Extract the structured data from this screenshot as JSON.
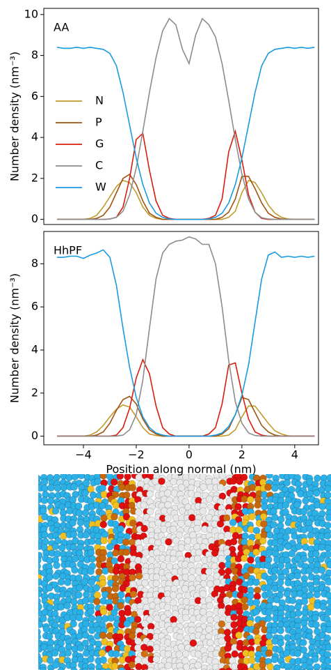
{
  "chart_data": [
    {
      "type": "line",
      "title": "AA",
      "ylabel": "Number density (nm⁻³)",
      "xlim": [
        -5.5,
        4.9
      ],
      "ylim": [
        -0.25,
        10.3
      ],
      "yticks": [
        0,
        2,
        4,
        6,
        8,
        10
      ],
      "legend": "upper left",
      "x": [
        -5,
        -4.75,
        -4.5,
        -4.25,
        -4,
        -3.75,
        -3.5,
        -3.25,
        -3,
        -2.75,
        -2.5,
        -2.25,
        -2,
        -1.75,
        -1.5,
        -1.25,
        -1,
        -0.75,
        -0.5,
        -0.25,
        0,
        0.25,
        0.5,
        0.75,
        1,
        1.25,
        1.5,
        1.75,
        2,
        2.25,
        2.5,
        2.75,
        3,
        3.25,
        3.5,
        3.75,
        4,
        4.25,
        4.5,
        4.75
      ],
      "series": [
        {
          "name": "N",
          "color": "#bf9a2c",
          "values": [
            0,
            0,
            0,
            0,
            0,
            0.05,
            0.2,
            0.6,
            1.1,
            1.6,
            1.9,
            1.8,
            1.3,
            0.6,
            0.2,
            0.05,
            0,
            0,
            0,
            0,
            0,
            0,
            0,
            0,
            0,
            0,
            0.1,
            0.4,
            1.3,
            1.9,
            1.8,
            1.3,
            0.7,
            0.3,
            0.1,
            0.02,
            0,
            0,
            0,
            0
          ]
        },
        {
          "name": "P",
          "color": "#a0520d",
          "values": [
            0,
            0,
            0,
            0,
            0,
            0,
            0.05,
            0.2,
            0.6,
            1.3,
            2.0,
            2.2,
            1.7,
            0.9,
            0.3,
            0.1,
            0,
            0,
            0,
            0,
            0,
            0,
            0,
            0,
            0,
            0.1,
            0.35,
            1.0,
            2.1,
            2.1,
            1.5,
            0.8,
            0.3,
            0.1,
            0.02,
            0,
            0,
            0,
            0,
            0
          ]
        },
        {
          "name": "G",
          "color": "#d91c0c",
          "values": [
            0,
            0,
            0,
            0,
            0,
            0,
            0,
            0,
            0.02,
            0.1,
            0.6,
            2.0,
            3.9,
            4.2,
            2.4,
            0.9,
            0.2,
            0.05,
            0,
            0,
            0,
            0,
            0,
            0.05,
            0.2,
            1.0,
            3.3,
            4.3,
            2.9,
            1.2,
            0.35,
            0.05,
            0,
            0,
            0,
            0,
            0,
            0,
            0,
            0
          ]
        },
        {
          "name": "C",
          "color": "#8c8c8c",
          "values": [
            0,
            0,
            0,
            0,
            0,
            0,
            0,
            0,
            0.02,
            0.1,
            0.4,
            1.2,
            2.5,
            4.3,
            6.2,
            7.9,
            9.2,
            9.8,
            9.5,
            8.3,
            7.6,
            9.0,
            9.8,
            9.5,
            8.9,
            7.6,
            5.8,
            3.9,
            2.2,
            1.0,
            0.35,
            0.08,
            0.02,
            0,
            0,
            0,
            0,
            0,
            0,
            0
          ]
        },
        {
          "name": "W",
          "color": "#1a9ae0",
          "values": [
            8.4,
            8.35,
            8.35,
            8.4,
            8.35,
            8.4,
            8.35,
            8.3,
            8.1,
            7.5,
            6.2,
            4.6,
            3.0,
            1.7,
            0.8,
            0.3,
            0.1,
            0.02,
            0,
            0,
            0,
            0,
            0,
            0.02,
            0.1,
            0.3,
            0.8,
            1.7,
            3.0,
            4.6,
            6.2,
            7.5,
            8.1,
            8.3,
            8.35,
            8.4,
            8.35,
            8.4,
            8.35,
            8.4
          ]
        }
      ]
    },
    {
      "type": "line",
      "title": "HhPF",
      "ylabel": "Number density (nm⁻³)",
      "xlabel": "Position along normal (nm)",
      "xlim": [
        -5.5,
        4.9
      ],
      "ylim": [
        -0.4,
        9.5
      ],
      "yticks": [
        0,
        2,
        4,
        6,
        8
      ],
      "xticks": [
        {
          "value": -4,
          "label": "−4"
        },
        {
          "value": -2,
          "label": "−2"
        },
        0,
        2,
        4
      ],
      "x": [
        -5,
        -4.75,
        -4.5,
        -4.25,
        -4,
        -3.75,
        -3.5,
        -3.25,
        -3,
        -2.75,
        -2.5,
        -2.25,
        -2,
        -1.75,
        -1.5,
        -1.25,
        -1,
        -0.75,
        -0.5,
        -0.25,
        0,
        0.25,
        0.5,
        0.75,
        1,
        1.25,
        1.5,
        1.75,
        2,
        2.25,
        2.5,
        2.75,
        3,
        3.25,
        3.5,
        3.75,
        4,
        4.25,
        4.5,
        4.75
      ],
      "series": [
        {
          "color": "#bf9a2c",
          "values": [
            0,
            0,
            0,
            0,
            0,
            0.05,
            0.2,
            0.5,
            0.9,
            1.25,
            1.45,
            1.35,
            0.9,
            0.4,
            0.1,
            0.03,
            0,
            0,
            0,
            0,
            0,
            0,
            0,
            0,
            0,
            0,
            0.05,
            0.3,
            0.9,
            1.4,
            1.4,
            1.0,
            0.6,
            0.25,
            0.1,
            0.02,
            0,
            0,
            0,
            0
          ]
        },
        {
          "color": "#a0520d",
          "values": [
            0,
            0,
            0,
            0,
            0,
            0,
            0.05,
            0.2,
            0.6,
            1.2,
            1.7,
            1.85,
            1.5,
            0.8,
            0.3,
            0.1,
            0,
            0,
            0,
            0,
            0,
            0,
            0,
            0,
            0,
            0.1,
            0.35,
            1.0,
            1.8,
            1.7,
            1.1,
            0.5,
            0.2,
            0.05,
            0,
            0,
            0,
            0,
            0,
            0
          ]
        },
        {
          "color": "#d91c0c",
          "values": [
            0,
            0,
            0,
            0,
            0,
            0,
            0,
            0,
            0,
            0.05,
            0.4,
            1.3,
            2.7,
            3.55,
            2.9,
            1.4,
            0.4,
            0.1,
            0,
            0,
            0,
            0,
            0,
            0.1,
            0.4,
            1.5,
            3.3,
            3.4,
            2.0,
            0.8,
            0.2,
            0.05,
            0,
            0,
            0,
            0,
            0,
            0,
            0,
            0
          ]
        },
        {
          "color": "#8c8c8c",
          "values": [
            0,
            0,
            0,
            0,
            0,
            0,
            0,
            0,
            0,
            0,
            0.05,
            0.3,
            1.0,
            2.6,
            5.0,
            7.3,
            8.5,
            8.9,
            9.05,
            9.1,
            9.25,
            9.15,
            8.9,
            8.9,
            8.0,
            6.0,
            3.5,
            1.6,
            0.6,
            0.15,
            0.03,
            0,
            0,
            0,
            0,
            0,
            0,
            0,
            0,
            0
          ]
        },
        {
          "color": "#1a9ae0",
          "values": [
            8.3,
            8.3,
            8.35,
            8.35,
            8.25,
            8.4,
            8.5,
            8.65,
            8.3,
            7.0,
            5.0,
            3.2,
            1.8,
            0.9,
            0.4,
            0.15,
            0.05,
            0,
            0,
            0,
            0,
            0,
            0,
            0,
            0.05,
            0.15,
            0.45,
            1.0,
            1.9,
            3.3,
            5.3,
            7.3,
            8.4,
            8.55,
            8.3,
            8.35,
            8.3,
            8.35,
            8.3,
            8.35
          ]
        }
      ]
    }
  ]
}
